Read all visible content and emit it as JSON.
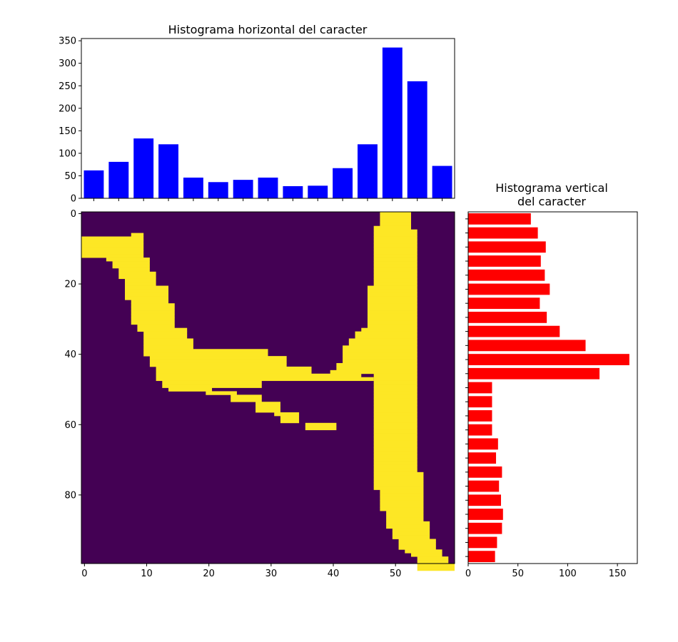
{
  "chart_data": [
    {
      "type": "bar",
      "title": "Histograma horizontal del caracter",
      "xlabel": "",
      "ylabel": "",
      "x": [
        1.5,
        5.5,
        9.5,
        13.5,
        17.5,
        21.5,
        25.5,
        29.5,
        33.5,
        37.5,
        41.5,
        45.5,
        49.5,
        53.5,
        57.5
      ],
      "values": [
        62,
        81,
        133,
        120,
        46,
        36,
        41,
        46,
        27,
        28,
        67,
        120,
        335,
        260,
        72
      ],
      "xlim": [
        -0.5,
        59.5
      ],
      "ylim": [
        0,
        355
      ],
      "yticks": [
        0,
        50,
        100,
        150,
        200,
        250,
        300,
        350
      ],
      "color": "#0000ff",
      "grid": false
    },
    {
      "type": "barh",
      "title": "Histograma vertical\ndel caracter",
      "xlabel": "",
      "ylabel": "",
      "y": [
        1.5,
        5.5,
        9.5,
        13.5,
        17.5,
        21.5,
        25.5,
        29.5,
        33.5,
        37.5,
        41.5,
        45.5,
        49.5,
        53.5,
        57.5,
        61.5,
        65.5,
        69.5,
        73.5,
        77.5,
        81.5,
        85.5,
        89.5,
        93.5,
        97.5
      ],
      "values": [
        63,
        70,
        78,
        73,
        77,
        82,
        72,
        79,
        92,
        118,
        162,
        132,
        24,
        24,
        24,
        24,
        30,
        28,
        34,
        31,
        33,
        35,
        34,
        29,
        27
      ],
      "xlim": [
        0,
        170
      ],
      "ylim": [
        99.5,
        -0.5
      ],
      "xticks": [
        0,
        50,
        100,
        150
      ],
      "color": "#ff0000",
      "grid": false
    },
    {
      "type": "heatmap",
      "xticks": [
        0,
        10,
        20,
        30,
        40,
        50
      ],
      "yticks": [
        0,
        20,
        40,
        60,
        80
      ],
      "xlim": [
        -0.5,
        59.5
      ],
      "ylim": [
        99.5,
        -0.5
      ],
      "colors": {
        "background": "#440154",
        "stroke": "#fde725"
      },
      "rows": 100,
      "cols": 60,
      "row_spans": [
        [
          [
            48,
            52
          ]
        ],
        [
          [
            48,
            52
          ]
        ],
        [
          [
            48,
            52
          ]
        ],
        [
          [
            48,
            52
          ]
        ],
        [
          [
            47,
            52
          ]
        ],
        [
          [
            47,
            53
          ]
        ],
        [
          [
            8,
            9
          ],
          [
            47,
            53
          ]
        ],
        [
          [
            0,
            9
          ],
          [
            47,
            53
          ]
        ],
        [
          [
            0,
            9
          ],
          [
            47,
            53
          ]
        ],
        [
          [
            0,
            9
          ],
          [
            47,
            53
          ]
        ],
        [
          [
            0,
            9
          ],
          [
            47,
            53
          ]
        ],
        [
          [
            0,
            9
          ],
          [
            47,
            53
          ]
        ],
        [
          [
            0,
            9
          ],
          [
            47,
            53
          ]
        ],
        [
          [
            4,
            10
          ],
          [
            47,
            53
          ]
        ],
        [
          [
            5,
            10
          ],
          [
            47,
            53
          ]
        ],
        [
          [
            5,
            10
          ],
          [
            47,
            53
          ]
        ],
        [
          [
            6,
            10
          ],
          [
            47,
            53
          ]
        ],
        [
          [
            6,
            11
          ],
          [
            47,
            53
          ]
        ],
        [
          [
            6,
            11
          ],
          [
            47,
            53
          ]
        ],
        [
          [
            7,
            11
          ],
          [
            47,
            53
          ]
        ],
        [
          [
            7,
            11
          ],
          [
            47,
            53
          ]
        ],
        [
          [
            7,
            13
          ],
          [
            46,
            53
          ]
        ],
        [
          [
            7,
            13
          ],
          [
            46,
            53
          ]
        ],
        [
          [
            7,
            13
          ],
          [
            46,
            53
          ]
        ],
        [
          [
            7,
            13
          ],
          [
            46,
            53
          ]
        ],
        [
          [
            8,
            13
          ],
          [
            46,
            53
          ]
        ],
        [
          [
            8,
            14
          ],
          [
            46,
            53
          ]
        ],
        [
          [
            8,
            14
          ],
          [
            46,
            53
          ]
        ],
        [
          [
            8,
            14
          ],
          [
            46,
            53
          ]
        ],
        [
          [
            8,
            14
          ],
          [
            46,
            53
          ]
        ],
        [
          [
            8,
            14
          ],
          [
            46,
            53
          ]
        ],
        [
          [
            8,
            14
          ],
          [
            46,
            53
          ]
        ],
        [
          [
            9,
            14
          ],
          [
            46,
            53
          ]
        ],
        [
          [
            9,
            16
          ],
          [
            45,
            53
          ]
        ],
        [
          [
            10,
            16
          ],
          [
            44,
            53
          ]
        ],
        [
          [
            10,
            16
          ],
          [
            44,
            53
          ]
        ],
        [
          [
            10,
            17
          ],
          [
            43,
            53
          ]
        ],
        [
          [
            10,
            17
          ],
          [
            43,
            53
          ]
        ],
        [
          [
            10,
            17
          ],
          [
            42,
            53
          ]
        ],
        [
          [
            10,
            29
          ],
          [
            42,
            53
          ]
        ],
        [
          [
            10,
            29
          ],
          [
            42,
            53
          ]
        ],
        [
          [
            11,
            32
          ],
          [
            42,
            53
          ]
        ],
        [
          [
            11,
            32
          ],
          [
            42,
            53
          ]
        ],
        [
          [
            11,
            32
          ],
          [
            41,
            53
          ]
        ],
        [
          [
            12,
            36
          ],
          [
            41,
            53
          ]
        ],
        [
          [
            12,
            36
          ],
          [
            40,
            53
          ]
        ],
        [
          [
            12,
            44
          ],
          [
            47,
            53
          ]
        ],
        [
          [
            12,
            46
          ],
          [
            47,
            53
          ]
        ],
        [
          [
            13,
            28
          ],
          [
            47,
            53
          ]
        ],
        [
          [
            13,
            28
          ],
          [
            47,
            53
          ]
        ],
        [
          [
            14,
            20
          ],
          [
            47,
            53
          ]
        ],
        [
          [
            20,
            24
          ],
          [
            47,
            53
          ]
        ],
        [
          [
            24,
            28
          ],
          [
            47,
            53
          ]
        ],
        [
          [
            24,
            28
          ],
          [
            47,
            53
          ]
        ],
        [
          [
            28,
            31
          ],
          [
            47,
            53
          ]
        ],
        [
          [
            28,
            31
          ],
          [
            47,
            53
          ]
        ],
        [
          [
            28,
            31
          ],
          [
            47,
            53
          ]
        ],
        [
          [
            31,
            34
          ],
          [
            47,
            53
          ]
        ],
        [
          [
            32,
            34
          ],
          [
            47,
            53
          ]
        ],
        [
          [
            32,
            34
          ],
          [
            47,
            53
          ]
        ],
        [
          [
            36,
            40
          ],
          [
            47,
            53
          ]
        ],
        [
          [
            36,
            40
          ],
          [
            47,
            53
          ]
        ],
        [
          [
            47,
            53
          ]
        ],
        [
          [
            47,
            53
          ]
        ],
        [
          [
            47,
            53
          ]
        ],
        [
          [
            47,
            53
          ]
        ],
        [
          [
            47,
            53
          ]
        ],
        [
          [
            47,
            53
          ]
        ],
        [
          [
            47,
            53
          ]
        ],
        [
          [
            47,
            53
          ]
        ],
        [
          [
            47,
            53
          ]
        ],
        [
          [
            47,
            53
          ]
        ],
        [
          [
            47,
            53
          ]
        ],
        [
          [
            47,
            53
          ]
        ],
        [
          [
            47,
            54
          ]
        ],
        [
          [
            47,
            54
          ]
        ],
        [
          [
            47,
            54
          ]
        ],
        [
          [
            47,
            54
          ]
        ],
        [
          [
            47,
            54
          ]
        ],
        [
          [
            48,
            54
          ]
        ],
        [
          [
            48,
            54
          ]
        ],
        [
          [
            48,
            54
          ]
        ],
        [
          [
            48,
            54
          ]
        ],
        [
          [
            48,
            54
          ]
        ],
        [
          [
            48,
            54
          ]
        ],
        [
          [
            49,
            54
          ]
        ],
        [
          [
            49,
            54
          ]
        ],
        [
          [
            49,
            54
          ]
        ],
        [
          [
            49,
            55
          ]
        ],
        [
          [
            49,
            55
          ]
        ],
        [
          [
            50,
            55
          ]
        ],
        [
          [
            50,
            55
          ]
        ],
        [
          [
            50,
            55
          ]
        ],
        [
          [
            51,
            56
          ]
        ],
        [
          [
            51,
            56
          ]
        ],
        [
          [
            51,
            56
          ]
        ],
        [
          [
            52,
            57
          ]
        ],
        [
          [
            53,
            57
          ]
        ],
        [
          [
            54,
            58
          ]
        ],
        [
          [
            54,
            58
          ]
        ],
        [
          [
            54,
            59
          ]
        ],
        [
          [
            54,
            59
          ]
        ]
      ]
    }
  ]
}
